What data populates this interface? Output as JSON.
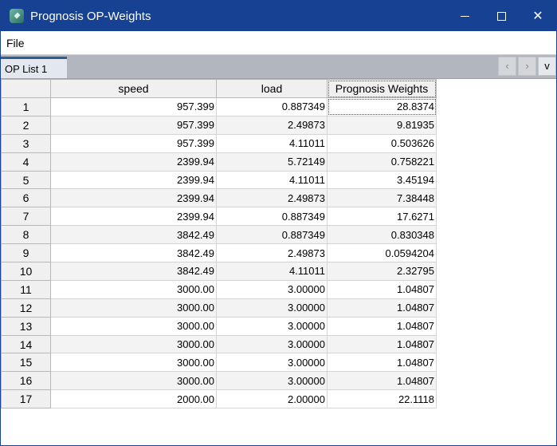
{
  "window": {
    "title": "Prognosis OP-Weights",
    "icon": "app-icon",
    "controls": [
      "minimize",
      "maximize",
      "close"
    ]
  },
  "menubar": {
    "items": [
      "File"
    ]
  },
  "tabs": {
    "items": [
      {
        "label": "OP List 1",
        "active": true
      }
    ],
    "nav": {
      "prev": "‹",
      "next": "›",
      "list": "v"
    }
  },
  "table": {
    "columns": [
      "speed",
      "load",
      "Prognosis Weights"
    ],
    "rows": [
      [
        "1",
        "957.399",
        "0.887349",
        "28.8374"
      ],
      [
        "2",
        "957.399",
        "2.49873",
        "9.81935"
      ],
      [
        "3",
        "957.399",
        "4.11011",
        "0.503626"
      ],
      [
        "4",
        "2399.94",
        "5.72149",
        "0.758221"
      ],
      [
        "5",
        "2399.94",
        "4.11011",
        "3.45194"
      ],
      [
        "6",
        "2399.94",
        "2.49873",
        "7.38448"
      ],
      [
        "7",
        "2399.94",
        "0.887349",
        "17.6271"
      ],
      [
        "8",
        "3842.49",
        "0.887349",
        "0.830348"
      ],
      [
        "9",
        "3842.49",
        "2.49873",
        "0.0594204"
      ],
      [
        "10",
        "3842.49",
        "4.11011",
        "2.32795"
      ],
      [
        "11",
        "3000.00",
        "3.00000",
        "1.04807"
      ],
      [
        "12",
        "3000.00",
        "3.00000",
        "1.04807"
      ],
      [
        "13",
        "3000.00",
        "3.00000",
        "1.04807"
      ],
      [
        "14",
        "3000.00",
        "3.00000",
        "1.04807"
      ],
      [
        "15",
        "3000.00",
        "3.00000",
        "1.04807"
      ],
      [
        "16",
        "3000.00",
        "3.00000",
        "1.04807"
      ],
      [
        "17",
        "2000.00",
        "2.00000",
        "22.1118"
      ]
    ]
  },
  "colors": {
    "titlebar": "#174293",
    "tab_accent": "#2d5d95"
  }
}
